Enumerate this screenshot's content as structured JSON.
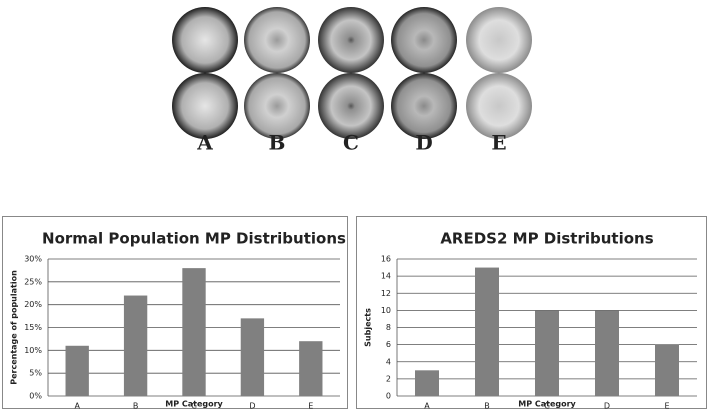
{
  "image_labels": [
    "A",
    "B",
    "C",
    "D",
    "E"
  ],
  "chart_data": [
    {
      "type": "bar",
      "title": "Normal Population MP Distributions",
      "x_label": "MP Category",
      "y_label": "Percentage of population",
      "categories": [
        "A",
        "B",
        "C",
        "D",
        "E"
      ],
      "values": [
        11,
        22,
        28,
        17,
        12
      ],
      "color": "#808080",
      "ylim": [
        0,
        30
      ],
      "yticks": [
        {
          "value": 0,
          "label": "0%"
        },
        {
          "value": 5,
          "label": "5%"
        },
        {
          "value": 10,
          "label": "10%"
        },
        {
          "value": 15,
          "label": "15%"
        },
        {
          "value": 20,
          "label": "20%"
        },
        {
          "value": 25,
          "label": "25%"
        },
        {
          "value": 30,
          "label": "30%"
        }
      ],
      "grid": true
    },
    {
      "type": "bar",
      "title": "AREDS2 MP Distributions",
      "x_label": "MP Category",
      "y_label": "Subjects",
      "categories": [
        "A",
        "B",
        "C",
        "D",
        "E"
      ],
      "values": [
        3,
        15,
        10,
        10,
        6
      ],
      "color": "#808080",
      "ylim": [
        0,
        16
      ],
      "yticks": [
        0,
        2,
        4,
        6,
        8,
        10,
        12,
        14,
        16
      ],
      "grid": true
    }
  ]
}
